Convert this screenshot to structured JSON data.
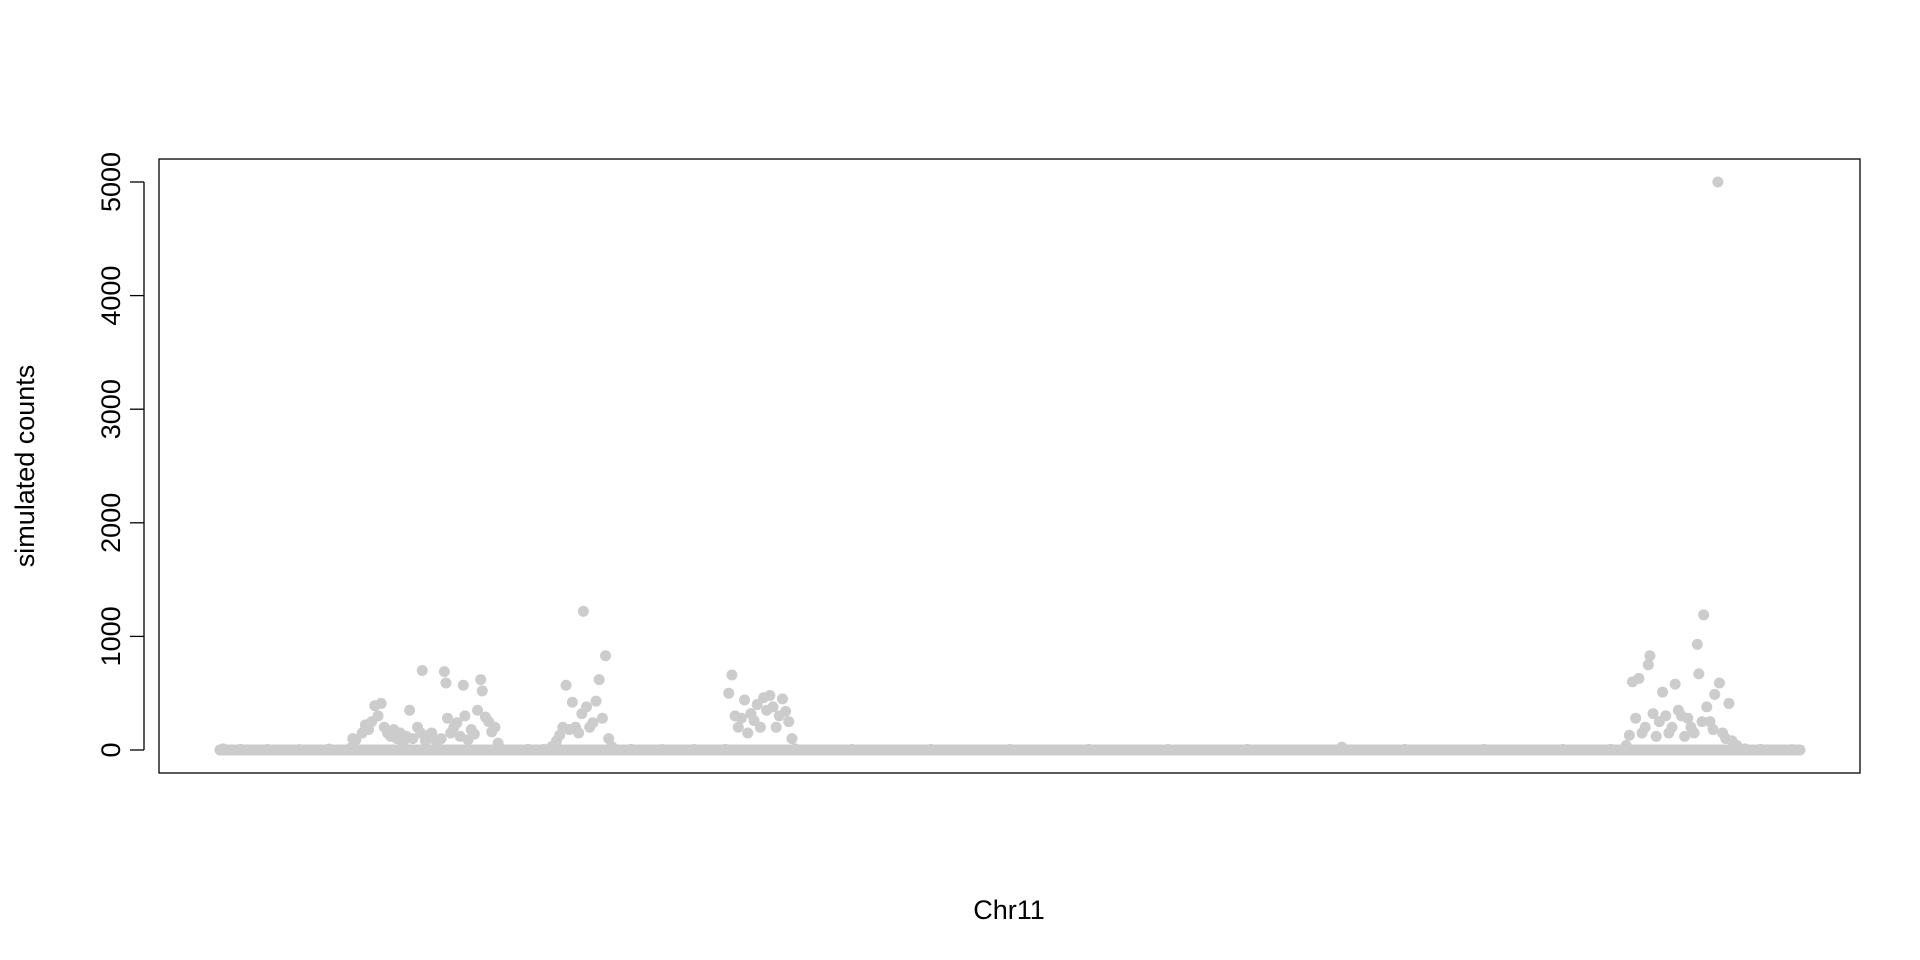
{
  "chart_data": {
    "type": "scatter",
    "title": "",
    "xlabel": "Chr11",
    "ylabel": "simulated counts",
    "ylim": [
      0,
      5000
    ],
    "yticks": [
      0,
      1000,
      2000,
      3000,
      4000,
      5000
    ],
    "xlim": [
      0,
      1000
    ],
    "x_ticks_shown": false,
    "grid": false,
    "legend": "none",
    "point_color": "#cccccc",
    "baseline": {
      "x_start": 0,
      "x_end": 1000,
      "y": 0
    },
    "series": [
      {
        "values": [
          {
            "x": 0,
            "y": 0
          },
          {
            "x": 2,
            "y": 10
          },
          {
            "x": 13,
            "y": 6
          },
          {
            "x": 30,
            "y": 4
          },
          {
            "x": 50,
            "y": 3
          },
          {
            "x": 69,
            "y": 8
          },
          {
            "x": 83,
            "y": 20
          },
          {
            "x": 84,
            "y": 100
          },
          {
            "x": 86,
            "y": 90
          },
          {
            "x": 90,
            "y": 150
          },
          {
            "x": 92,
            "y": 220
          },
          {
            "x": 94,
            "y": 180
          },
          {
            "x": 96,
            "y": 250
          },
          {
            "x": 98,
            "y": 390
          },
          {
            "x": 100,
            "y": 300
          },
          {
            "x": 102,
            "y": 410
          },
          {
            "x": 104,
            "y": 200
          },
          {
            "x": 106,
            "y": 150
          },
          {
            "x": 108,
            "y": 120
          },
          {
            "x": 110,
            "y": 180
          },
          {
            "x": 112,
            "y": 100
          },
          {
            "x": 114,
            "y": 150
          },
          {
            "x": 116,
            "y": 60
          },
          {
            "x": 118,
            "y": 120
          },
          {
            "x": 120,
            "y": 350
          },
          {
            "x": 122,
            "y": 100
          },
          {
            "x": 125,
            "y": 200
          },
          {
            "x": 127,
            "y": 150
          },
          {
            "x": 128,
            "y": 700
          },
          {
            "x": 130,
            "y": 80
          },
          {
            "x": 132,
            "y": 130
          },
          {
            "x": 134,
            "y": 150
          },
          {
            "x": 136,
            "y": 90
          },
          {
            "x": 138,
            "y": 20
          },
          {
            "x": 140,
            "y": 100
          },
          {
            "x": 142,
            "y": 690
          },
          {
            "x": 143,
            "y": 590
          },
          {
            "x": 144,
            "y": 280
          },
          {
            "x": 146,
            "y": 150
          },
          {
            "x": 148,
            "y": 200
          },
          {
            "x": 150,
            "y": 240
          },
          {
            "x": 152,
            "y": 120
          },
          {
            "x": 154,
            "y": 570
          },
          {
            "x": 155,
            "y": 300
          },
          {
            "x": 157,
            "y": 90
          },
          {
            "x": 159,
            "y": 180
          },
          {
            "x": 161,
            "y": 140
          },
          {
            "x": 163,
            "y": 350
          },
          {
            "x": 165,
            "y": 620
          },
          {
            "x": 166,
            "y": 520
          },
          {
            "x": 168,
            "y": 290
          },
          {
            "x": 170,
            "y": 250
          },
          {
            "x": 172,
            "y": 160
          },
          {
            "x": 174,
            "y": 200
          },
          {
            "x": 176,
            "y": 60
          },
          {
            "x": 178,
            "y": 10
          },
          {
            "x": 195,
            "y": 5
          },
          {
            "x": 205,
            "y": 6
          },
          {
            "x": 210,
            "y": 30
          },
          {
            "x": 213,
            "y": 80
          },
          {
            "x": 215,
            "y": 130
          },
          {
            "x": 217,
            "y": 200
          },
          {
            "x": 219,
            "y": 570
          },
          {
            "x": 221,
            "y": 180
          },
          {
            "x": 223,
            "y": 420
          },
          {
            "x": 225,
            "y": 200
          },
          {
            "x": 227,
            "y": 150
          },
          {
            "x": 229,
            "y": 320
          },
          {
            "x": 230,
            "y": 1220
          },
          {
            "x": 232,
            "y": 380
          },
          {
            "x": 234,
            "y": 200
          },
          {
            "x": 236,
            "y": 240
          },
          {
            "x": 238,
            "y": 430
          },
          {
            "x": 240,
            "y": 620
          },
          {
            "x": 242,
            "y": 280
          },
          {
            "x": 244,
            "y": 830
          },
          {
            "x": 246,
            "y": 100
          },
          {
            "x": 248,
            "y": 30
          },
          {
            "x": 260,
            "y": 5
          },
          {
            "x": 280,
            "y": 4
          },
          {
            "x": 300,
            "y": 5
          },
          {
            "x": 320,
            "y": 5
          },
          {
            "x": 322,
            "y": 500
          },
          {
            "x": 324,
            "y": 660
          },
          {
            "x": 326,
            "y": 300
          },
          {
            "x": 328,
            "y": 200
          },
          {
            "x": 330,
            "y": 280
          },
          {
            "x": 332,
            "y": 440
          },
          {
            "x": 334,
            "y": 150
          },
          {
            "x": 336,
            "y": 320
          },
          {
            "x": 338,
            "y": 260
          },
          {
            "x": 340,
            "y": 400
          },
          {
            "x": 342,
            "y": 200
          },
          {
            "x": 344,
            "y": 460
          },
          {
            "x": 346,
            "y": 350
          },
          {
            "x": 348,
            "y": 480
          },
          {
            "x": 350,
            "y": 380
          },
          {
            "x": 352,
            "y": 200
          },
          {
            "x": 354,
            "y": 300
          },
          {
            "x": 356,
            "y": 450
          },
          {
            "x": 358,
            "y": 340
          },
          {
            "x": 360,
            "y": 250
          },
          {
            "x": 362,
            "y": 100
          },
          {
            "x": 364,
            "y": 10
          },
          {
            "x": 400,
            "y": 4
          },
          {
            "x": 450,
            "y": 5
          },
          {
            "x": 500,
            "y": 6
          },
          {
            "x": 550,
            "y": 5
          },
          {
            "x": 600,
            "y": 4
          },
          {
            "x": 650,
            "y": 5
          },
          {
            "x": 710,
            "y": 25
          },
          {
            "x": 750,
            "y": 5
          },
          {
            "x": 800,
            "y": 6
          },
          {
            "x": 850,
            "y": 5
          },
          {
            "x": 880,
            "y": 5
          },
          {
            "x": 890,
            "y": 40
          },
          {
            "x": 892,
            "y": 130
          },
          {
            "x": 894,
            "y": 600
          },
          {
            "x": 896,
            "y": 280
          },
          {
            "x": 898,
            "y": 630
          },
          {
            "x": 900,
            "y": 150
          },
          {
            "x": 902,
            "y": 200
          },
          {
            "x": 904,
            "y": 750
          },
          {
            "x": 905,
            "y": 830
          },
          {
            "x": 907,
            "y": 320
          },
          {
            "x": 909,
            "y": 120
          },
          {
            "x": 911,
            "y": 250
          },
          {
            "x": 913,
            "y": 510
          },
          {
            "x": 915,
            "y": 300
          },
          {
            "x": 917,
            "y": 150
          },
          {
            "x": 919,
            "y": 200
          },
          {
            "x": 921,
            "y": 580
          },
          {
            "x": 923,
            "y": 350
          },
          {
            "x": 925,
            "y": 300
          },
          {
            "x": 927,
            "y": 120
          },
          {
            "x": 929,
            "y": 280
          },
          {
            "x": 931,
            "y": 200
          },
          {
            "x": 933,
            "y": 150
          },
          {
            "x": 935,
            "y": 930
          },
          {
            "x": 936,
            "y": 670
          },
          {
            "x": 938,
            "y": 250
          },
          {
            "x": 939,
            "y": 1190
          },
          {
            "x": 941,
            "y": 380
          },
          {
            "x": 943,
            "y": 250
          },
          {
            "x": 945,
            "y": 180
          },
          {
            "x": 946,
            "y": 490
          },
          {
            "x": 948,
            "y": 5000
          },
          {
            "x": 949,
            "y": 590
          },
          {
            "x": 951,
            "y": 150
          },
          {
            "x": 953,
            "y": 100
          },
          {
            "x": 955,
            "y": 410
          },
          {
            "x": 957,
            "y": 80
          },
          {
            "x": 960,
            "y": 40
          },
          {
            "x": 965,
            "y": 10
          },
          {
            "x": 975,
            "y": 5
          },
          {
            "x": 995,
            "y": 3
          }
        ]
      }
    ]
  }
}
